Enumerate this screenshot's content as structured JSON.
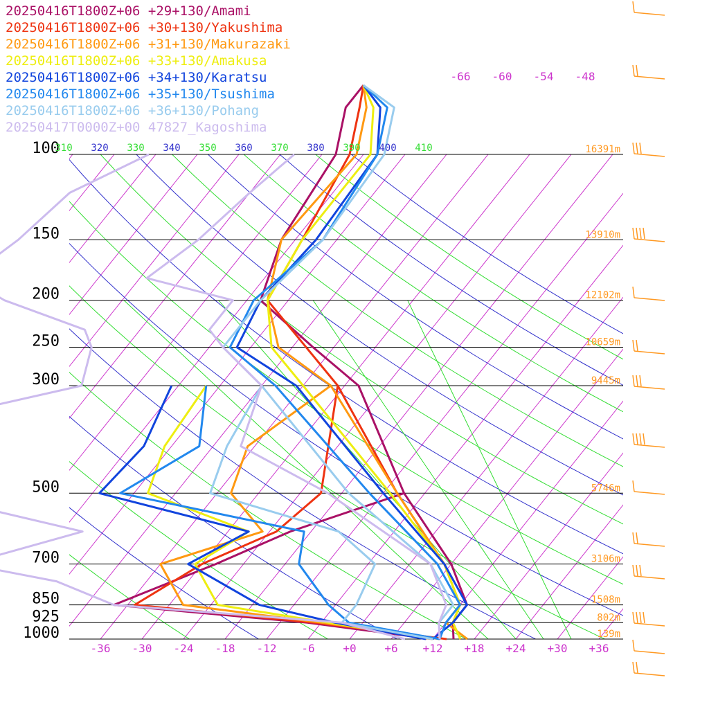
{
  "chart_data": {
    "type": "line",
    "title": "",
    "xlabel": "",
    "ylabel": "",
    "pressure_levels": [
      100,
      150,
      200,
      250,
      300,
      500,
      700,
      850,
      925,
      1000
    ],
    "pressure_labels": [
      "100",
      "150",
      "200",
      "250",
      "300",
      "500",
      "700",
      "850",
      "925",
      "1000"
    ],
    "height_labels": [
      {
        "p": 100,
        "text": "16391m"
      },
      {
        "p": 150,
        "text": "13910m"
      },
      {
        "p": 200,
        "text": "12102m"
      },
      {
        "p": 250,
        "text": "10659m"
      },
      {
        "p": 300,
        "text": "9445m"
      },
      {
        "p": 500,
        "text": "5746m"
      },
      {
        "p": 700,
        "text": "3106m"
      },
      {
        "p": 850,
        "text": "1508m"
      },
      {
        "p": 925,
        "text": "802m"
      },
      {
        "p": 1000,
        "text": "139m"
      }
    ],
    "temperature_ticks": [
      "-36",
      "-30",
      "-24",
      "-18",
      "-12",
      "-6",
      "+0",
      "+6",
      "+12",
      "+18",
      "+24",
      "+30",
      "+36"
    ],
    "temperature_tick_values": [
      -36,
      -30,
      -24,
      -18,
      -12,
      -6,
      0,
      6,
      12,
      18,
      24,
      30,
      36
    ],
    "isotherm_top_labels": [
      "-66",
      "-60",
      "-54",
      "-48"
    ],
    "theta_labels": [
      {
        "text": "310",
        "color": "#33dd33"
      },
      {
        "text": "320",
        "color": "#3333cc"
      },
      {
        "text": "330",
        "color": "#33dd33"
      },
      {
        "text": "340",
        "color": "#3333cc"
      },
      {
        "text": "350",
        "color": "#33dd33"
      },
      {
        "text": "360",
        "color": "#3333cc"
      },
      {
        "text": "370",
        "color": "#33dd33"
      },
      {
        "text": "380",
        "color": "#3333cc"
      },
      {
        "text": "390",
        "color": "#33dd33"
      },
      {
        "text": "400",
        "color": "#3333cc"
      },
      {
        "text": "410",
        "color": "#33dd33"
      }
    ],
    "series": [
      {
        "name": "20250416T1800Z+06 +29+130/Amami",
        "color": "#aa1166",
        "temp": [
          [
            72,
            -62
          ],
          [
            80,
            -62
          ],
          [
            100,
            -58
          ],
          [
            150,
            -56
          ],
          [
            200,
            -52
          ],
          [
            250,
            -39
          ],
          [
            300,
            -28
          ],
          [
            500,
            -9
          ],
          [
            700,
            6
          ],
          [
            850,
            13
          ],
          [
            925,
            13
          ],
          [
            1000,
            15
          ]
        ],
        "dew": [
          [
            500,
            -9
          ],
          [
            600,
            -21
          ],
          [
            700,
            -28
          ],
          [
            850,
            -38
          ],
          [
            925,
            -8
          ],
          [
            1000,
            12
          ]
        ]
      },
      {
        "name": "20250416T1800Z+06 +30+130/Yakushima",
        "color": "#ee3311",
        "temp": [
          [
            72,
            -62
          ],
          [
            80,
            -60
          ],
          [
            100,
            -56
          ],
          [
            150,
            -53
          ],
          [
            200,
            -51
          ],
          [
            250,
            -40
          ],
          [
            300,
            -31
          ],
          [
            500,
            -10
          ],
          [
            700,
            5
          ],
          [
            850,
            12
          ],
          [
            925,
            13
          ],
          [
            1000,
            16
          ]
        ],
        "dew": [
          [
            300,
            -31
          ],
          [
            500,
            -21
          ],
          [
            600,
            -23
          ],
          [
            700,
            -30
          ],
          [
            850,
            -35
          ],
          [
            925,
            -7
          ],
          [
            1000,
            14
          ]
        ]
      },
      {
        "name": "20250416T1800Z+06 +31+130/Makurazaki",
        "color": "#ff9911",
        "temp": [
          [
            72,
            -62
          ],
          [
            80,
            -59
          ],
          [
            100,
            -55
          ],
          [
            150,
            -56
          ],
          [
            200,
            -51
          ],
          [
            250,
            -44
          ],
          [
            300,
            -32
          ],
          [
            500,
            -10
          ],
          [
            700,
            5
          ],
          [
            850,
            12
          ],
          [
            925,
            12
          ],
          [
            1000,
            17
          ]
        ],
        "dew": [
          [
            300,
            -32
          ],
          [
            400,
            -37
          ],
          [
            500,
            -34
          ],
          [
            600,
            -25
          ],
          [
            700,
            -36
          ],
          [
            850,
            -28
          ],
          [
            925,
            -6
          ],
          [
            1000,
            13
          ]
        ]
      },
      {
        "name": "20250416T1800Z+06 +33+130/Amakusa",
        "color": "#eeee11",
        "temp": [
          [
            72,
            -62
          ],
          [
            80,
            -58
          ],
          [
            100,
            -53
          ],
          [
            150,
            -53
          ],
          [
            200,
            -51
          ],
          [
            250,
            -45
          ],
          [
            300,
            -36
          ],
          [
            500,
            -11
          ],
          [
            700,
            5
          ],
          [
            850,
            12
          ],
          [
            925,
            13
          ],
          [
            1000,
            16
          ]
        ],
        "dew": [
          [
            300,
            -50
          ],
          [
            400,
            -49
          ],
          [
            500,
            -46
          ],
          [
            600,
            -27
          ],
          [
            700,
            -31
          ],
          [
            850,
            -23
          ],
          [
            925,
            -5
          ],
          [
            1000,
            12
          ]
        ]
      },
      {
        "name": "20250416T1800Z+06 +34+130/Karatsu",
        "color": "#1144dd",
        "temp": [
          [
            72,
            -62
          ],
          [
            80,
            -57
          ],
          [
            100,
            -52
          ],
          [
            150,
            -51
          ],
          [
            200,
            -52
          ],
          [
            250,
            -50
          ],
          [
            300,
            -37
          ],
          [
            500,
            -12
          ],
          [
            700,
            5
          ],
          [
            850,
            13
          ],
          [
            925,
            13
          ],
          [
            1000,
            12
          ]
        ],
        "dew": [
          [
            300,
            -55
          ],
          [
            400,
            -52
          ],
          [
            500,
            -53
          ],
          [
            600,
            -27
          ],
          [
            700,
            -32
          ],
          [
            850,
            -17
          ],
          [
            925,
            -4
          ],
          [
            1000,
            11
          ]
        ]
      },
      {
        "name": "20250416T1800Z+06 +35+130/Tsushima",
        "color": "#2288ee",
        "temp": [
          [
            72,
            -62
          ],
          [
            80,
            -56
          ],
          [
            100,
            -52
          ],
          [
            150,
            -50
          ],
          [
            200,
            -53
          ],
          [
            250,
            -51
          ],
          [
            300,
            -40
          ],
          [
            500,
            -14
          ],
          [
            700,
            4
          ],
          [
            850,
            12
          ],
          [
            925,
            12
          ],
          [
            1000,
            13
          ]
        ],
        "dew": [
          [
            300,
            -50
          ],
          [
            400,
            -44
          ],
          [
            500,
            -50
          ],
          [
            600,
            -19
          ],
          [
            700,
            -16
          ],
          [
            850,
            -7
          ],
          [
            925,
            -2
          ],
          [
            1000,
            13
          ]
        ]
      },
      {
        "name": "20250416T1800Z+06 +36+130/Pohang",
        "color": "#99ccee",
        "temp": [
          [
            72,
            -62
          ],
          [
            80,
            -55
          ],
          [
            100,
            -51
          ],
          [
            150,
            -50
          ],
          [
            200,
            -52
          ],
          [
            250,
            -52
          ],
          [
            300,
            -42
          ],
          [
            500,
            -17
          ],
          [
            700,
            3
          ],
          [
            850,
            11
          ],
          [
            925,
            11
          ],
          [
            1000,
            13
          ]
        ],
        "dew": [
          [
            300,
            -42
          ],
          [
            400,
            -40
          ],
          [
            500,
            -37
          ],
          [
            600,
            -14
          ],
          [
            700,
            -5
          ],
          [
            850,
            -3
          ],
          [
            925,
            -3
          ],
          [
            1000,
            12
          ]
        ]
      },
      {
        "name": "20250417T0000Z+00 47827_Kagoshima",
        "color": "#ccbbee",
        "temp": [
          [
            100,
            -64
          ],
          [
            120,
            -66
          ],
          [
            150,
            -68
          ],
          [
            180,
            -71
          ],
          [
            200,
            -56
          ],
          [
            230,
            -56
          ],
          [
            250,
            -52
          ],
          [
            300,
            -42
          ],
          [
            400,
            -38
          ],
          [
            500,
            -20
          ],
          [
            700,
            3
          ],
          [
            850,
            10
          ],
          [
            925,
            11
          ],
          [
            1000,
            13
          ]
        ],
        "dew": [
          [
            100,
            -85
          ],
          [
            120,
            -92
          ],
          [
            150,
            -94
          ],
          [
            180,
            -97
          ],
          [
            200,
            -89
          ],
          [
            230,
            -74
          ],
          [
            250,
            -71
          ],
          [
            300,
            -68
          ],
          [
            350,
            -85
          ],
          [
            400,
            -86
          ],
          [
            450,
            -79
          ],
          [
            500,
            -79
          ],
          [
            600,
            -51
          ],
          [
            700,
            -64
          ],
          [
            760,
            -49
          ],
          [
            850,
            -38
          ],
          [
            925,
            -3
          ],
          [
            1000,
            8
          ]
        ]
      }
    ]
  }
}
